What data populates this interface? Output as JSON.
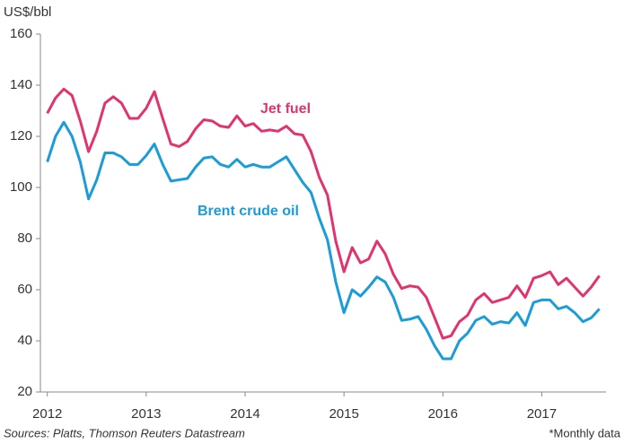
{
  "chart_data": {
    "type": "line",
    "y_label": "US$/bbl",
    "source": "Sources: Platts, Thomson Reuters Datastream",
    "note": "*Monthly data",
    "x": [
      2012,
      2012.083,
      2012.167,
      2012.25,
      2012.333,
      2012.417,
      2012.5,
      2012.583,
      2012.667,
      2012.75,
      2012.833,
      2012.917,
      2013,
      2013.083,
      2013.167,
      2013.25,
      2013.333,
      2013.417,
      2013.5,
      2013.583,
      2013.667,
      2013.75,
      2013.833,
      2013.917,
      2014,
      2014.083,
      2014.167,
      2014.25,
      2014.333,
      2014.417,
      2014.5,
      2014.583,
      2014.667,
      2014.75,
      2014.833,
      2014.917,
      2015,
      2015.083,
      2015.167,
      2015.25,
      2015.333,
      2015.417,
      2015.5,
      2015.583,
      2015.667,
      2015.75,
      2015.833,
      2015.917,
      2016,
      2016.083,
      2016.167,
      2016.25,
      2016.333,
      2016.417,
      2016.5,
      2016.583,
      2016.667,
      2016.75,
      2016.833,
      2016.917,
      2017,
      2017.083,
      2017.167,
      2017.25,
      2017.333,
      2017.417,
      2017.5,
      2017.583
    ],
    "series": [
      {
        "name": "Jet fuel",
        "color": "#e0336f",
        "values": [
          129,
          135,
          138.5,
          136,
          126,
          114,
          122,
          133,
          135.5,
          133,
          127,
          127,
          131,
          137.5,
          127,
          117,
          116,
          118,
          123,
          126.5,
          126,
          124,
          123.5,
          128,
          124,
          125,
          122,
          122.5,
          122,
          124,
          121,
          120.5,
          114,
          104,
          97,
          79,
          67,
          76.5,
          70.5,
          72,
          79,
          74,
          66,
          60.5,
          61.5,
          61,
          57,
          49,
          41,
          42,
          47.5,
          50,
          56,
          58.5,
          55,
          56,
          57,
          61.5,
          57,
          64.5,
          65.5,
          67,
          62,
          64.5,
          61,
          57.5,
          61,
          65.5
        ]
      },
      {
        "name": "Brent crude oil",
        "color": "#1a9cd8",
        "values": [
          110,
          120,
          125.5,
          120,
          110,
          95.5,
          103,
          113.5,
          113.5,
          112,
          109,
          109,
          112.5,
          117,
          109,
          102.5,
          103,
          103.5,
          108,
          111.5,
          112,
          109,
          108,
          111,
          108,
          109,
          108,
          108,
          110,
          112,
          107,
          102,
          98,
          88,
          79.5,
          63,
          51,
          60,
          57.5,
          61,
          65,
          63,
          57,
          48,
          48.5,
          49.5,
          44.5,
          38,
          33,
          33,
          40,
          43,
          48,
          49.5,
          46.5,
          47.5,
          47,
          51,
          46,
          55,
          56,
          56,
          52.5,
          53.5,
          51,
          47.5,
          49,
          52.5
        ]
      }
    ],
    "xlim": [
      2011.93,
      2017.65
    ],
    "xticks": [
      2012,
      2013,
      2014,
      2015,
      2016,
      2017
    ],
    "ylim": [
      20,
      160
    ],
    "yticks": [
      20,
      40,
      60,
      80,
      100,
      120,
      140,
      160
    ],
    "grid": false
  }
}
